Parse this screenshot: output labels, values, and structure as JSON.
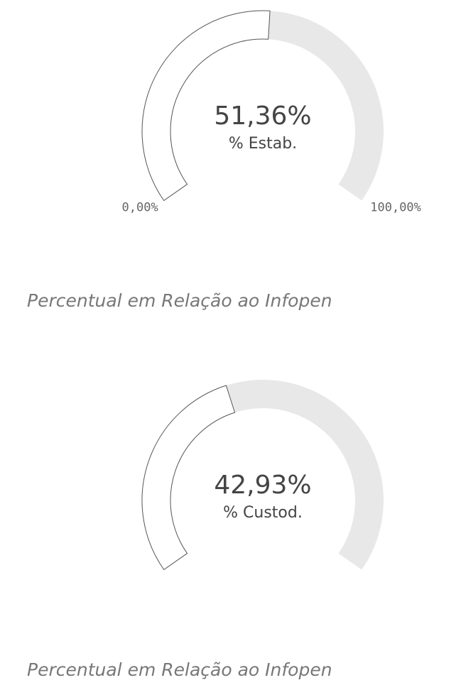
{
  "chart_data": [
    {
      "type": "gauge",
      "values": [
        51.36
      ],
      "value_labels": [
        "51,36%"
      ],
      "label": "% Estab.",
      "ylim": [
        0,
        100
      ],
      "yticks": [
        {
          "value": 0,
          "label": "0,00%"
        },
        {
          "value": 100,
          "label": "100,00%"
        }
      ],
      "subtitle": "Percentual em Relação ao Infopen"
    },
    {
      "type": "gauge",
      "values": [
        42.93
      ],
      "value_labels": [
        "42,93%"
      ],
      "label": "% Custod.",
      "ylim": [
        0,
        100
      ],
      "yticks": [],
      "subtitle": "Percentual em Relação ao Infopen"
    }
  ]
}
